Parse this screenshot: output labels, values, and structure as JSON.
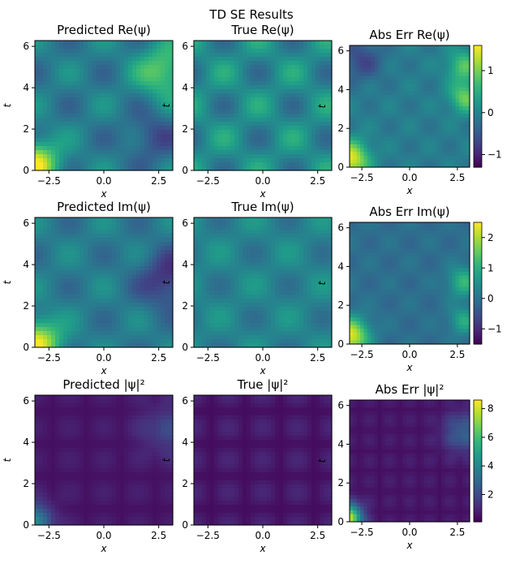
{
  "figure": {
    "suptitle": "TD SE Results"
  },
  "chart_data": [
    {
      "type": "heatmap",
      "title": "Predicted Re(ψ)",
      "xlabel": "x",
      "ylabel": "t",
      "xlim": [
        -3.14,
        3.14
      ],
      "ylim": [
        0,
        6.28
      ],
      "xticks": [
        "-2.5",
        "0.0",
        "2.5"
      ],
      "yticks": [
        "0",
        "2",
        "4",
        "6"
      ],
      "colorbar": false
    },
    {
      "type": "heatmap",
      "title": "True Re(ψ)",
      "xlabel": "x",
      "ylabel": "t",
      "xlim": [
        -3.14,
        3.14
      ],
      "ylim": [
        0,
        6.28
      ],
      "xticks": [
        "-2.5",
        "0.0",
        "2.5"
      ],
      "yticks": [
        "0",
        "2",
        "4",
        "6"
      ],
      "colorbar": false
    },
    {
      "type": "heatmap",
      "title": "Abs Err Re(ψ)",
      "xlabel": "x",
      "ylabel": "t",
      "xlim": [
        -3.14,
        3.14
      ],
      "ylim": [
        0,
        6.28
      ],
      "xticks": [
        "-2.5",
        "0.0",
        "2.5"
      ],
      "yticks": [
        "0",
        "2",
        "4",
        "6"
      ],
      "colorbar": true,
      "clim": [
        -1.3,
        1.6
      ],
      "cticks": [
        "1",
        "0",
        "−1"
      ]
    },
    {
      "type": "heatmap",
      "title": "Predicted Im(ψ)",
      "xlabel": "x",
      "ylabel": "t",
      "xlim": [
        -3.14,
        3.14
      ],
      "ylim": [
        0,
        6.28
      ],
      "xticks": [
        "-2.5",
        "0.0",
        "2.5"
      ],
      "yticks": [
        "0",
        "2",
        "4",
        "6"
      ],
      "colorbar": false
    },
    {
      "type": "heatmap",
      "title": "True Im(ψ)",
      "xlabel": "x",
      "ylabel": "t",
      "xlim": [
        -3.14,
        3.14
      ],
      "ylim": [
        0,
        6.28
      ],
      "xticks": [
        "-2.5",
        "0.0",
        "2.5"
      ],
      "yticks": [
        "0",
        "2",
        "4",
        "6"
      ],
      "colorbar": false
    },
    {
      "type": "heatmap",
      "title": "Abs Err Im(ψ)",
      "xlabel": "x",
      "ylabel": "t",
      "xlim": [
        -3.14,
        3.14
      ],
      "ylim": [
        0,
        6.28
      ],
      "xticks": [
        "-2.5",
        "0.0",
        "2.5"
      ],
      "yticks": [
        "0",
        "2",
        "4",
        "6"
      ],
      "colorbar": true,
      "clim": [
        -1.5,
        2.5
      ],
      "cticks": [
        "2",
        "1",
        "0",
        "−1"
      ]
    },
    {
      "type": "heatmap",
      "title": "Predicted |ψ|²",
      "xlabel": "x",
      "ylabel": "t",
      "xlim": [
        -3.14,
        3.14
      ],
      "ylim": [
        0,
        6.28
      ],
      "xticks": [
        "-2.5",
        "0.0",
        "2.5"
      ],
      "yticks": [
        "0",
        "2",
        "4",
        "6"
      ],
      "colorbar": false
    },
    {
      "type": "heatmap",
      "title": "True |ψ|²",
      "xlabel": "x",
      "ylabel": "t",
      "xlim": [
        -3.14,
        3.14
      ],
      "ylim": [
        0,
        6.28
      ],
      "xticks": [
        "-2.5",
        "0.0",
        "2.5"
      ],
      "yticks": [
        "0",
        "2",
        "4",
        "6"
      ],
      "colorbar": false
    },
    {
      "type": "heatmap",
      "title": "Abs Err |ψ|²",
      "xlabel": "x",
      "ylabel": "t",
      "xlim": [
        -3.14,
        3.14
      ],
      "ylim": [
        0,
        6.28
      ],
      "xticks": [
        "-2.5",
        "0.0",
        "2.5"
      ],
      "yticks": [
        "0",
        "2",
        "4",
        "6"
      ],
      "colorbar": true,
      "clim": [
        0.1,
        8.6
      ],
      "cticks": [
        "8",
        "6",
        "4",
        "2"
      ]
    }
  ],
  "colormap": "viridis"
}
